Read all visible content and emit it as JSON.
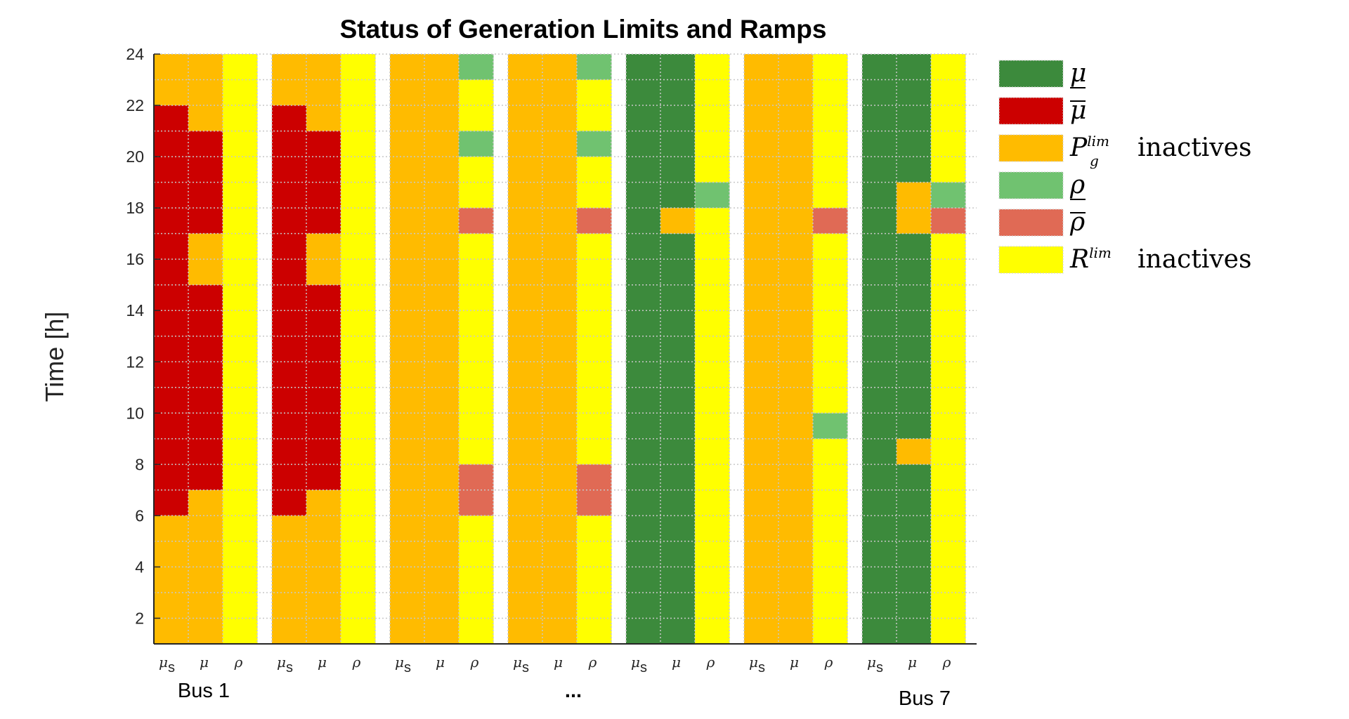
{
  "chart_data": {
    "type": "heatmap",
    "title": "Status of Generation Limits and Ramps",
    "ylabel": "Time [h]",
    "ylim": [
      1,
      24
    ],
    "yticks": [
      "2",
      "4",
      "6",
      "8",
      "10",
      "12",
      "14",
      "16",
      "18",
      "20",
      "22",
      "24"
    ],
    "grid": true,
    "legend_position": "right",
    "column_labels": [
      "μs",
      "μ",
      "ρ"
    ],
    "group_labels": [
      "Bus 1",
      "...",
      "Bus 7"
    ],
    "status_colors": {
      "mu_lower": "#3c8a3c",
      "mu_upper": "#cc0000",
      "pg_inactive": "#ffbb00",
      "rho_lower": "#70c270",
      "rho_upper": "#e06a55",
      "r_inactive": "#ffff00"
    },
    "legend": [
      {
        "status": "mu_lower",
        "symbol": "μ",
        "bar": "under",
        "suffix": ""
      },
      {
        "status": "mu_upper",
        "symbol": "μ",
        "bar": "over",
        "suffix": ""
      },
      {
        "status": "pg_inactive",
        "symbol": "P",
        "sub": "g",
        "sup": "lim",
        "suffix": "inactives"
      },
      {
        "status": "rho_lower",
        "symbol": "ρ",
        "bar": "under",
        "suffix": ""
      },
      {
        "status": "rho_upper",
        "symbol": "ρ",
        "bar": "over",
        "suffix": ""
      },
      {
        "status": "r_inactive",
        "symbol": "R",
        "sup": "lim",
        "suffix": "inactives"
      }
    ],
    "segment_units": "hours",
    "groups": [
      {
        "columns": [
          [
            [
              "pg_inactive",
              1,
              6
            ],
            [
              "mu_upper",
              6,
              22
            ],
            [
              "pg_inactive",
              22,
              24
            ]
          ],
          [
            [
              "pg_inactive",
              1,
              7
            ],
            [
              "mu_upper",
              7,
              15
            ],
            [
              "pg_inactive",
              15,
              17
            ],
            [
              "mu_upper",
              17,
              21
            ],
            [
              "pg_inactive",
              21,
              24
            ]
          ],
          [
            [
              "r_inactive",
              1,
              24
            ]
          ]
        ]
      },
      {
        "columns": [
          [
            [
              "pg_inactive",
              1,
              6
            ],
            [
              "mu_upper",
              6,
              22
            ],
            [
              "pg_inactive",
              22,
              24
            ]
          ],
          [
            [
              "pg_inactive",
              1,
              7
            ],
            [
              "mu_upper",
              7,
              15
            ],
            [
              "pg_inactive",
              15,
              17
            ],
            [
              "mu_upper",
              17,
              21
            ],
            [
              "pg_inactive",
              21,
              24
            ]
          ],
          [
            [
              "r_inactive",
              1,
              24
            ]
          ]
        ]
      },
      {
        "columns": [
          [
            [
              "pg_inactive",
              1,
              24
            ]
          ],
          [
            [
              "pg_inactive",
              1,
              24
            ]
          ],
          [
            [
              "r_inactive",
              1,
              6
            ],
            [
              "rho_upper",
              6,
              8
            ],
            [
              "r_inactive",
              8,
              17
            ],
            [
              "rho_upper",
              17,
              18
            ],
            [
              "r_inactive",
              18,
              20
            ],
            [
              "rho_lower",
              20,
              21
            ],
            [
              "r_inactive",
              21,
              23
            ],
            [
              "rho_lower",
              23,
              24
            ]
          ]
        ]
      },
      {
        "columns": [
          [
            [
              "pg_inactive",
              1,
              24
            ]
          ],
          [
            [
              "pg_inactive",
              1,
              24
            ]
          ],
          [
            [
              "r_inactive",
              1,
              6
            ],
            [
              "rho_upper",
              6,
              8
            ],
            [
              "r_inactive",
              8,
              17
            ],
            [
              "rho_upper",
              17,
              18
            ],
            [
              "r_inactive",
              18,
              20
            ],
            [
              "rho_lower",
              20,
              21
            ],
            [
              "r_inactive",
              21,
              23
            ],
            [
              "rho_lower",
              23,
              24
            ]
          ]
        ]
      },
      {
        "columns": [
          [
            [
              "mu_lower",
              1,
              24
            ]
          ],
          [
            [
              "mu_lower",
              1,
              17
            ],
            [
              "pg_inactive",
              17,
              18
            ],
            [
              "mu_lower",
              18,
              24
            ]
          ],
          [
            [
              "r_inactive",
              1,
              18
            ],
            [
              "rho_lower",
              18,
              19
            ],
            [
              "r_inactive",
              19,
              24
            ]
          ]
        ]
      },
      {
        "columns": [
          [
            [
              "pg_inactive",
              1,
              24
            ]
          ],
          [
            [
              "pg_inactive",
              1,
              24
            ]
          ],
          [
            [
              "r_inactive",
              1,
              9
            ],
            [
              "rho_lower",
              9,
              10
            ],
            [
              "r_inactive",
              10,
              17
            ],
            [
              "rho_upper",
              17,
              18
            ],
            [
              "r_inactive",
              18,
              24
            ]
          ]
        ]
      },
      {
        "columns": [
          [
            [
              "mu_lower",
              1,
              24
            ]
          ],
          [
            [
              "mu_lower",
              1,
              8
            ],
            [
              "pg_inactive",
              8,
              9
            ],
            [
              "mu_lower",
              9,
              17
            ],
            [
              "pg_inactive",
              17,
              19
            ],
            [
              "mu_lower",
              19,
              24
            ]
          ],
          [
            [
              "r_inactive",
              1,
              17
            ],
            [
              "rho_upper",
              17,
              18
            ],
            [
              "rho_lower",
              18,
              19
            ],
            [
              "r_inactive",
              19,
              24
            ]
          ]
        ]
      }
    ]
  }
}
